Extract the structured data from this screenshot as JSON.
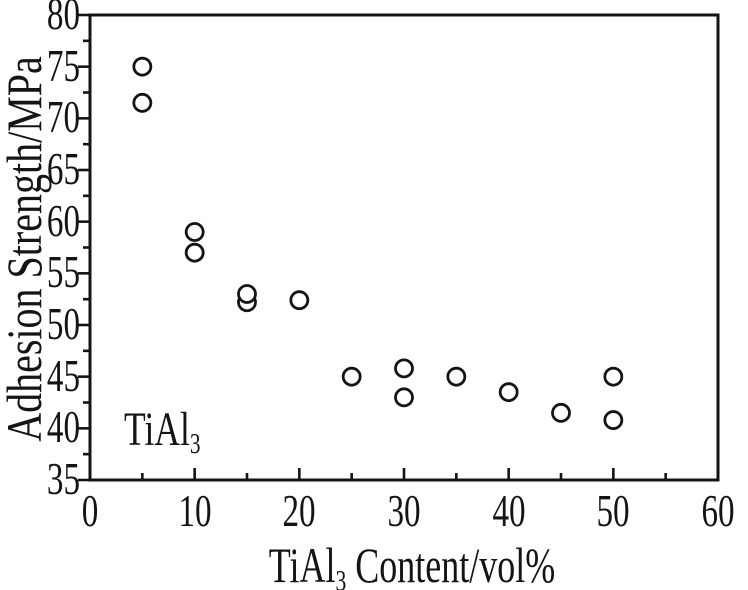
{
  "chart_data": {
    "type": "scatter",
    "title": "",
    "ylabel": "Adhesion Strength/MPa",
    "xlabel": {
      "pre": "TiAl",
      "sub": "3",
      "post": " Content/vol%"
    },
    "annotation": {
      "pre": "TiAl",
      "sub": "3"
    },
    "x_axis": {
      "min": 0,
      "max": 60,
      "major_ticks": [
        0,
        10,
        20,
        30,
        40,
        50,
        60
      ],
      "minor_step": 5,
      "tick_labels": [
        "0",
        "10",
        "20",
        "30",
        "40",
        "50",
        "60"
      ]
    },
    "y_axis": {
      "min": 35,
      "max": 80,
      "major_ticks": [
        35,
        40,
        45,
        50,
        55,
        60,
        65,
        70,
        75,
        80
      ],
      "minor_step": 2.5,
      "tick_labels": [
        "35",
        "40",
        "45",
        "50",
        "55",
        "60",
        "65",
        "70",
        "75",
        "80"
      ]
    },
    "points": [
      [
        5,
        75
      ],
      [
        5,
        71.5
      ],
      [
        10,
        59
      ],
      [
        10,
        57
      ],
      [
        15,
        52.2
      ],
      [
        15,
        53
      ],
      [
        20,
        52.4
      ],
      [
        25,
        45
      ],
      [
        30,
        45.8
      ],
      [
        30,
        43
      ],
      [
        35,
        45
      ],
      [
        40,
        43.5
      ],
      [
        45,
        41.5
      ],
      [
        50,
        45
      ],
      [
        50,
        40.8
      ]
    ],
    "marker": {
      "shape": "open-circle",
      "radius_px": 8.5,
      "stroke": "#141414",
      "stroke_width": 2.8,
      "fill": "#ffffff"
    },
    "grid": false,
    "legend": false,
    "colors": {
      "background": "#ffffff",
      "axis": "#141414",
      "text": "#141414"
    }
  }
}
